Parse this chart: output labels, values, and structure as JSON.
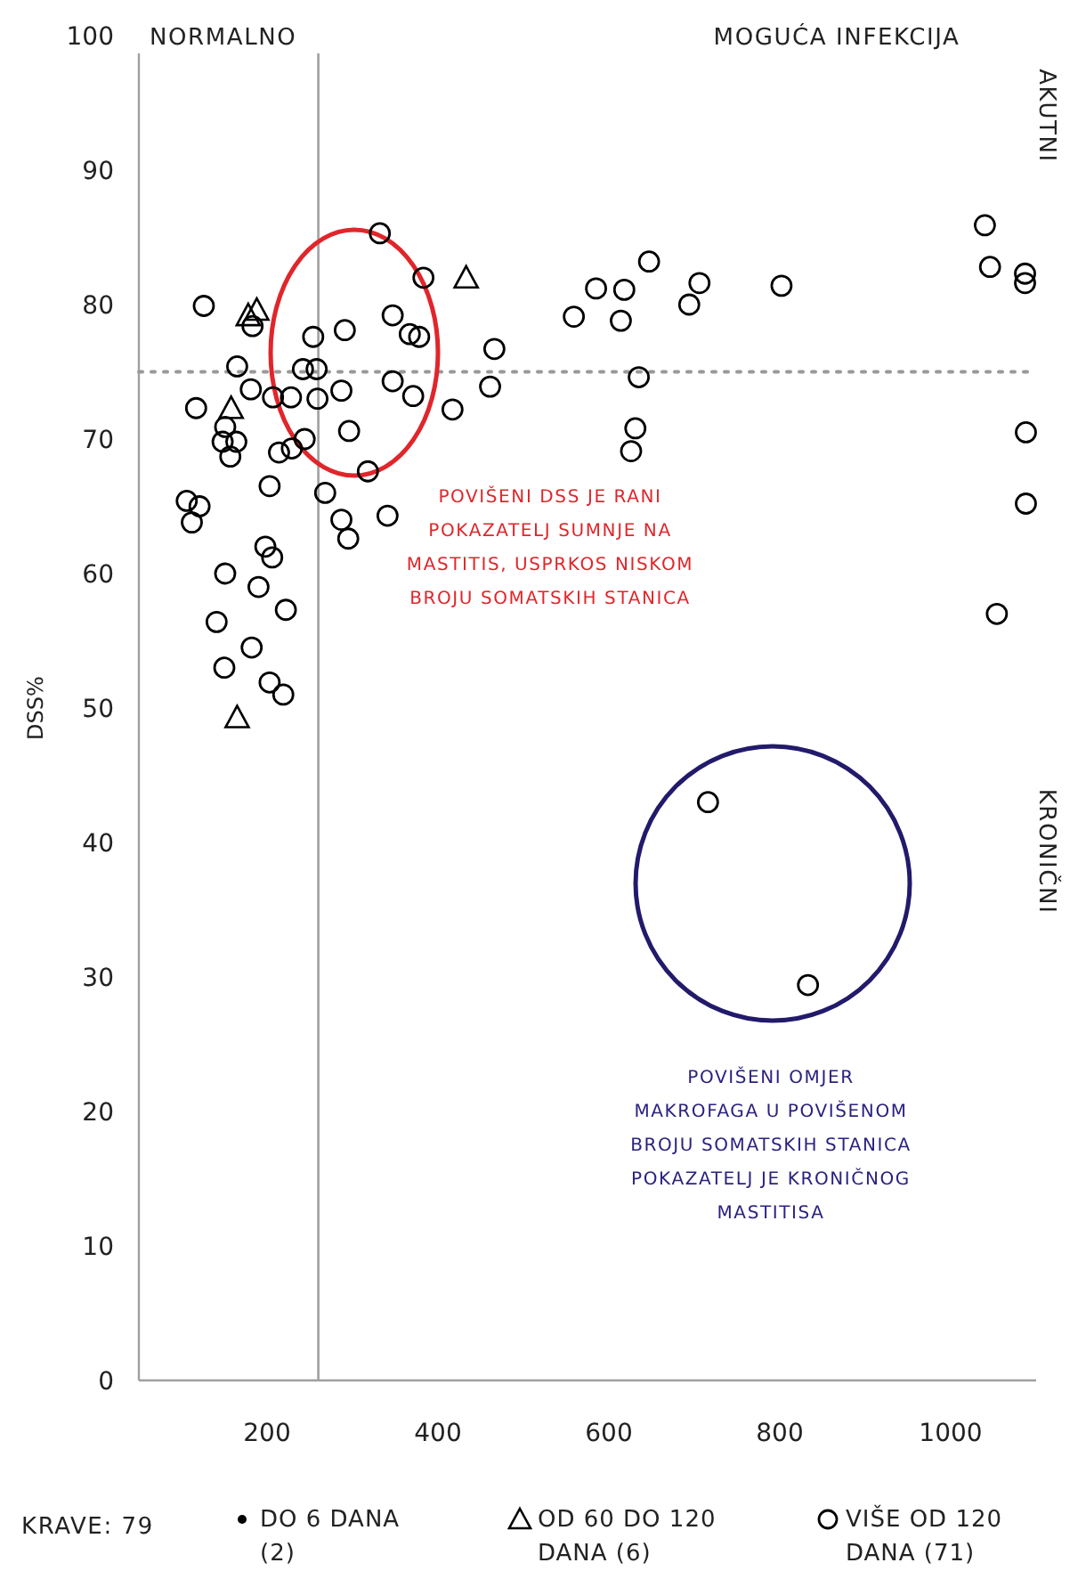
{
  "chart_data": {
    "type": "scatter",
    "ylabel": "DSS%",
    "xlim": [
      50,
      1100
    ],
    "ylim": [
      0,
      100
    ],
    "xticks": [
      200,
      400,
      600,
      800,
      1000
    ],
    "yticks": [
      0,
      10,
      20,
      30,
      40,
      50,
      60,
      70,
      80,
      90,
      100
    ],
    "grid": false,
    "legend": "bottom",
    "series": [
      {
        "name": "DO 6 DANA (2)",
        "color": "#000000",
        "marker": "dot"
      },
      {
        "name": "OD 60 DO 120 DANA (6)",
        "color": "#000000",
        "marker": "triangle",
        "x": [
          433,
          178,
          188,
          158,
          165
        ],
        "values": [
          82.0,
          79.2,
          79.6,
          72.3,
          49.3
        ]
      },
      {
        "name": "VIŠE OD 120 DANA (71)",
        "color": "#000000",
        "marker": "circle",
        "x": [
          332,
          383,
          126,
          183,
          254,
          291,
          347,
          367,
          378,
          165,
          242,
          258,
          181,
          207,
          228,
          259,
          287,
          347,
          371,
          117,
          417,
          461,
          466,
          151,
          148,
          164,
          157,
          214,
          229,
          244,
          296,
          318,
          203,
          268,
          106,
          121,
          112,
          287,
          295,
          341,
          198,
          206,
          151,
          190,
          222,
          141,
          182,
          150,
          203,
          219,
          1040,
          1046,
          1087,
          1087,
          647,
          585,
          618,
          559,
          614,
          706,
          694,
          802,
          635,
          631,
          626,
          1088,
          1088,
          1054,
          716,
          833
        ],
        "values": [
          85.3,
          82.0,
          79.9,
          78.4,
          77.6,
          78.1,
          79.2,
          77.8,
          77.6,
          75.4,
          75.2,
          75.2,
          73.7,
          73.1,
          73.1,
          73.0,
          73.6,
          74.3,
          73.2,
          72.3,
          72.2,
          73.9,
          76.7,
          70.9,
          69.8,
          69.8,
          68.7,
          69.0,
          69.3,
          70.0,
          70.6,
          67.6,
          66.5,
          66.0,
          65.4,
          65.0,
          63.8,
          64.0,
          62.6,
          64.3,
          62.0,
          61.2,
          60.0,
          59.0,
          57.3,
          56.4,
          54.5,
          53.0,
          51.9,
          51.0,
          85.9,
          82.8,
          82.3,
          81.6,
          83.2,
          81.2,
          81.1,
          79.1,
          78.8,
          81.6,
          80.0,
          81.4,
          74.6,
          70.8,
          69.1,
          70.5,
          65.2,
          57.0,
          43.0,
          29.4
        ]
      }
    ],
    "ref_lines": [
      {
        "axis": "x",
        "value": 260,
        "color": "#a0a0a0",
        "line_style": "solid"
      },
      {
        "axis": "y",
        "value": 75,
        "color": "#999999",
        "line_style": "dotted"
      }
    ],
    "annotations": [
      "NORMALNO",
      "MOGUĆA INFEKCIJA",
      "AKUTNI",
      "KRONIČNI",
      "POVIŠENI DSS JE RANI\nPOKAZATELJ SUMNJE NA\nMASTITIS, USPRKOS NISKOM\nBROJU SOMATSKIH STANICA",
      "POVIŠENI OMJER\nMAKROFAGA U POVIŠENOM\nBROJU SOMATSKIH STANICA\nPOKAZATELJ JE KRONIČNOG\nMASTITISA",
      "KRAVE: 79"
    ]
  }
}
